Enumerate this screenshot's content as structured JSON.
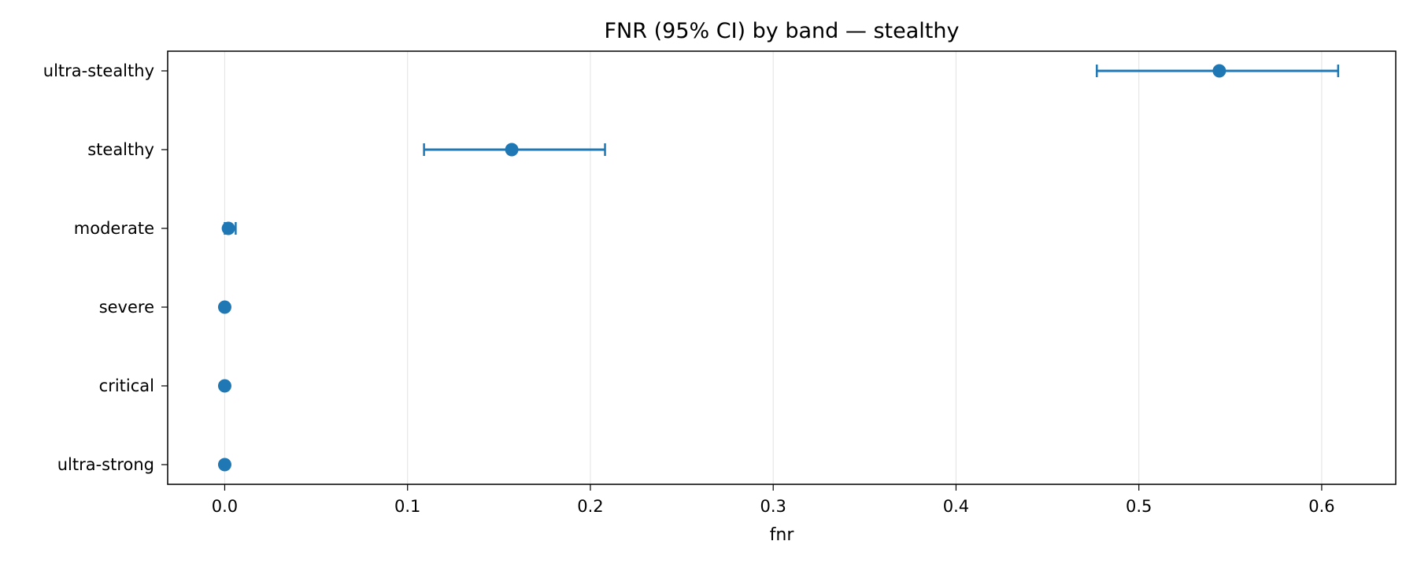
{
  "chart_data": {
    "type": "errorbar",
    "title": "FNR (95% CI) by band — stealthy",
    "xlabel": "fnr",
    "ylabel": "",
    "xlim": [
      -0.0312,
      0.6405
    ],
    "x_ticks": [
      0.0,
      0.1,
      0.2,
      0.3,
      0.4,
      0.5,
      0.6
    ],
    "x_tick_labels": [
      "0.0",
      "0.1",
      "0.2",
      "0.3",
      "0.4",
      "0.5",
      "0.6"
    ],
    "grid": "vertical",
    "legend": "none",
    "color": "#1f77b4",
    "categories": [
      "ultra-stealthy",
      "stealthy",
      "moderate",
      "severe",
      "critical",
      "ultra-strong"
    ],
    "points": [
      {
        "band": "ultra-stealthy",
        "fnr": 0.544,
        "ci_low": 0.477,
        "ci_high": 0.609
      },
      {
        "band": "stealthy",
        "fnr": 0.157,
        "ci_low": 0.109,
        "ci_high": 0.208
      },
      {
        "band": "moderate",
        "fnr": 0.002,
        "ci_low": 0.0,
        "ci_high": 0.006
      },
      {
        "band": "severe",
        "fnr": 0.0,
        "ci_low": 0.0,
        "ci_high": 0.0
      },
      {
        "band": "critical",
        "fnr": 0.0,
        "ci_low": 0.0,
        "ci_high": 0.0
      },
      {
        "band": "ultra-strong",
        "fnr": 0.0,
        "ci_low": 0.0,
        "ci_high": 0.0
      }
    ]
  }
}
